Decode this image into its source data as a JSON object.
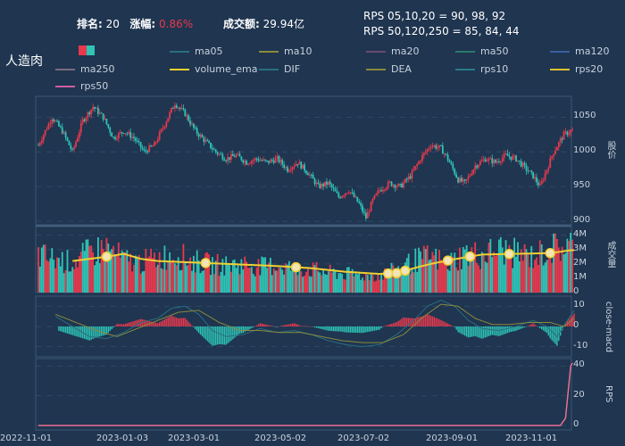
{
  "header": {
    "rank_label": "排名:",
    "rank_value": "20",
    "change_label": "涨幅:",
    "change_value": "0.86%",
    "turnover_label": "成交额:",
    "turnover_value": "29.94亿",
    "rps_line1": "RPS 05,10,20 = 90, 98, 92",
    "rps_line2": "RPS 50,120,250 = 85, 84, 44"
  },
  "stock_name": "人造肉",
  "legend": [
    {
      "name": "ma05",
      "color": "#2a6f80"
    },
    {
      "name": "ma10",
      "color": "#8a8a3c"
    },
    {
      "name": "ma20",
      "color": "#6a4a70"
    },
    {
      "name": "ma50",
      "color": "#2a7a6a"
    },
    {
      "name": "ma120",
      "color": "#3a5fa0"
    },
    {
      "name": "ma250",
      "color": "#7a6a80"
    },
    {
      "name": "volume_ema",
      "color": "#f0d030"
    },
    {
      "name": "DIF",
      "color": "#2a6f80"
    },
    {
      "name": "DEA",
      "color": "#8a8a3c"
    },
    {
      "name": "rps10",
      "color": "#2a7a8a"
    },
    {
      "name": "rps20",
      "color": "#e0c030"
    },
    {
      "name": "rps50",
      "color": "#d060a0"
    }
  ],
  "colors": {
    "up": "#e8394d",
    "down": "#2ec4b6",
    "volume_ema": "#f0d030",
    "rps": "#e87090",
    "grid": "#2e4a66"
  },
  "chart_data": [
    {
      "type": "candlestick",
      "ylabel": "股价",
      "yticks": [
        900,
        950,
        1000,
        1050
      ],
      "ylim": [
        895,
        1080
      ],
      "x_range": [
        "2022-11-01",
        "2023-11-01"
      ],
      "price_path": [
        [
          0,
          1010
        ],
        [
          8,
          1050
        ],
        [
          14,
          1030
        ],
        [
          20,
          1000
        ],
        [
          26,
          1045
        ],
        [
          32,
          1065
        ],
        [
          38,
          1050
        ],
        [
          44,
          1020
        ],
        [
          50,
          1030
        ],
        [
          56,
          1020
        ],
        [
          62,
          1000
        ],
        [
          68,
          1010
        ],
        [
          74,
          1040
        ],
        [
          80,
          1070
        ],
        [
          86,
          1055
        ],
        [
          92,
          1030
        ],
        [
          98,
          1015
        ],
        [
          104,
          1000
        ],
        [
          110,
          990
        ],
        [
          116,
          995
        ],
        [
          122,
          985
        ],
        [
          128,
          990
        ],
        [
          134,
          985
        ],
        [
          140,
          990
        ],
        [
          146,
          975
        ],
        [
          152,
          985
        ],
        [
          158,
          970
        ],
        [
          164,
          950
        ],
        [
          170,
          955
        ],
        [
          176,
          935
        ],
        [
          182,
          945
        ],
        [
          188,
          925
        ],
        [
          192,
          905
        ],
        [
          196,
          930
        ],
        [
          200,
          945
        ],
        [
          206,
          955
        ],
        [
          212,
          950
        ],
        [
          218,
          965
        ],
        [
          224,
          990
        ],
        [
          230,
          1010
        ],
        [
          236,
          1005
        ],
        [
          240,
          990
        ],
        [
          246,
          960
        ],
        [
          250,
          955
        ],
        [
          256,
          980
        ],
        [
          262,
          990
        ],
        [
          268,
          985
        ],
        [
          274,
          995
        ],
        [
          280,
          990
        ],
        [
          286,
          975
        ],
        [
          290,
          965
        ],
        [
          294,
          950
        ],
        [
          298,
          975
        ],
        [
          302,
          1000
        ],
        [
          308,
          1025
        ],
        [
          312,
          1030
        ]
      ]
    },
    {
      "type": "bar",
      "ylabel": "成交量",
      "yticks": [
        "0",
        "1M",
        "2M",
        "3M",
        "4M"
      ],
      "ylim": [
        0,
        4600000
      ],
      "volume_path": [
        [
          0,
          2.6
        ],
        [
          10,
          2.3
        ],
        [
          20,
          2.1
        ],
        [
          30,
          2.8
        ],
        [
          40,
          3.1
        ],
        [
          50,
          2.3
        ],
        [
          60,
          2.1
        ],
        [
          70,
          2.4
        ],
        [
          80,
          2.7
        ],
        [
          90,
          2.2
        ],
        [
          100,
          2.0
        ],
        [
          110,
          1.9
        ],
        [
          120,
          2.0
        ],
        [
          130,
          1.8
        ],
        [
          140,
          1.9
        ],
        [
          150,
          1.7
        ],
        [
          160,
          1.6
        ],
        [
          170,
          1.4
        ],
        [
          180,
          1.3
        ],
        [
          190,
          1.2
        ],
        [
          200,
          1.2
        ],
        [
          210,
          1.6
        ],
        [
          220,
          2.2
        ],
        [
          230,
          2.5
        ],
        [
          240,
          2.0
        ],
        [
          250,
          2.7
        ],
        [
          260,
          2.6
        ],
        [
          270,
          3.0
        ],
        [
          280,
          2.7
        ],
        [
          290,
          2.5
        ],
        [
          300,
          3.0
        ],
        [
          312,
          3.3
        ]
      ],
      "ema_path": [
        [
          20,
          2.2
        ],
        [
          40,
          2.5
        ],
        [
          50,
          2.7
        ],
        [
          60,
          2.35
        ],
        [
          70,
          2.2
        ],
        [
          80,
          2.15
        ],
        [
          100,
          2.05
        ],
        [
          120,
          1.95
        ],
        [
          140,
          1.85
        ],
        [
          160,
          1.7
        ],
        [
          180,
          1.45
        ],
        [
          200,
          1.3
        ],
        [
          210,
          1.35
        ],
        [
          220,
          1.7
        ],
        [
          230,
          2.0
        ],
        [
          245,
          2.35
        ],
        [
          260,
          2.65
        ],
        [
          280,
          2.7
        ],
        [
          300,
          2.75
        ],
        [
          312,
          2.95
        ]
      ],
      "highlight_points": [
        40,
        98,
        151,
        205,
        210,
        215,
        240,
        253,
        276,
        300
      ]
    },
    {
      "type": "line",
      "ylabel": "close-macd",
      "yticks": [
        -10,
        0,
        10
      ],
      "ylim": [
        -15,
        15
      ],
      "dif_path": [
        [
          10,
          5
        ],
        [
          20,
          0
        ],
        [
          30,
          -5
        ],
        [
          40,
          -6
        ],
        [
          50,
          -3
        ],
        [
          60,
          2
        ],
        [
          70,
          4
        ],
        [
          78,
          9
        ],
        [
          86,
          10
        ],
        [
          94,
          6
        ],
        [
          102,
          -2
        ],
        [
          110,
          -5
        ],
        [
          120,
          -4
        ],
        [
          130,
          -1
        ],
        [
          140,
          -3
        ],
        [
          150,
          -2
        ],
        [
          160,
          -4
        ],
        [
          170,
          -7
        ],
        [
          180,
          -9
        ],
        [
          190,
          -10
        ],
        [
          200,
          -9
        ],
        [
          210,
          -4
        ],
        [
          220,
          3
        ],
        [
          228,
          10
        ],
        [
          236,
          13
        ],
        [
          244,
          10
        ],
        [
          252,
          3
        ],
        [
          260,
          -1
        ],
        [
          270,
          -2
        ],
        [
          280,
          0
        ],
        [
          290,
          3
        ],
        [
          298,
          0
        ],
        [
          304,
          -5
        ],
        [
          310,
          3
        ],
        [
          314,
          8
        ]
      ],
      "dea_path": [
        [
          10,
          6
        ],
        [
          22,
          2
        ],
        [
          34,
          -2
        ],
        [
          46,
          -5
        ],
        [
          58,
          -1
        ],
        [
          70,
          3
        ],
        [
          82,
          7
        ],
        [
          94,
          8
        ],
        [
          106,
          2
        ],
        [
          118,
          -2
        ],
        [
          130,
          -2
        ],
        [
          142,
          -3
        ],
        [
          154,
          -3
        ],
        [
          166,
          -5
        ],
        [
          178,
          -7
        ],
        [
          190,
          -8
        ],
        [
          202,
          -8
        ],
        [
          214,
          -4
        ],
        [
          226,
          5
        ],
        [
          236,
          11
        ],
        [
          246,
          10
        ],
        [
          256,
          4
        ],
        [
          266,
          1
        ],
        [
          276,
          1
        ],
        [
          288,
          2
        ],
        [
          300,
          2
        ],
        [
          308,
          0
        ],
        [
          314,
          4
        ]
      ]
    },
    {
      "type": "line",
      "ylabel": "RPS",
      "yticks": [
        0,
        20,
        40
      ],
      "ylim": [
        -3,
        45
      ],
      "rps_path": [
        [
          0,
          0
        ],
        [
          300,
          0
        ],
        [
          306,
          0
        ],
        [
          309,
          5
        ],
        [
          312,
          40
        ],
        [
          313,
          42
        ]
      ]
    }
  ],
  "x_ticks": [
    "2022-11-01",
    "2023-01-03",
    "2023-03-01",
    "2023-05-02",
    "2023-07-02",
    "2023-09-01",
    "2023-11-01"
  ]
}
